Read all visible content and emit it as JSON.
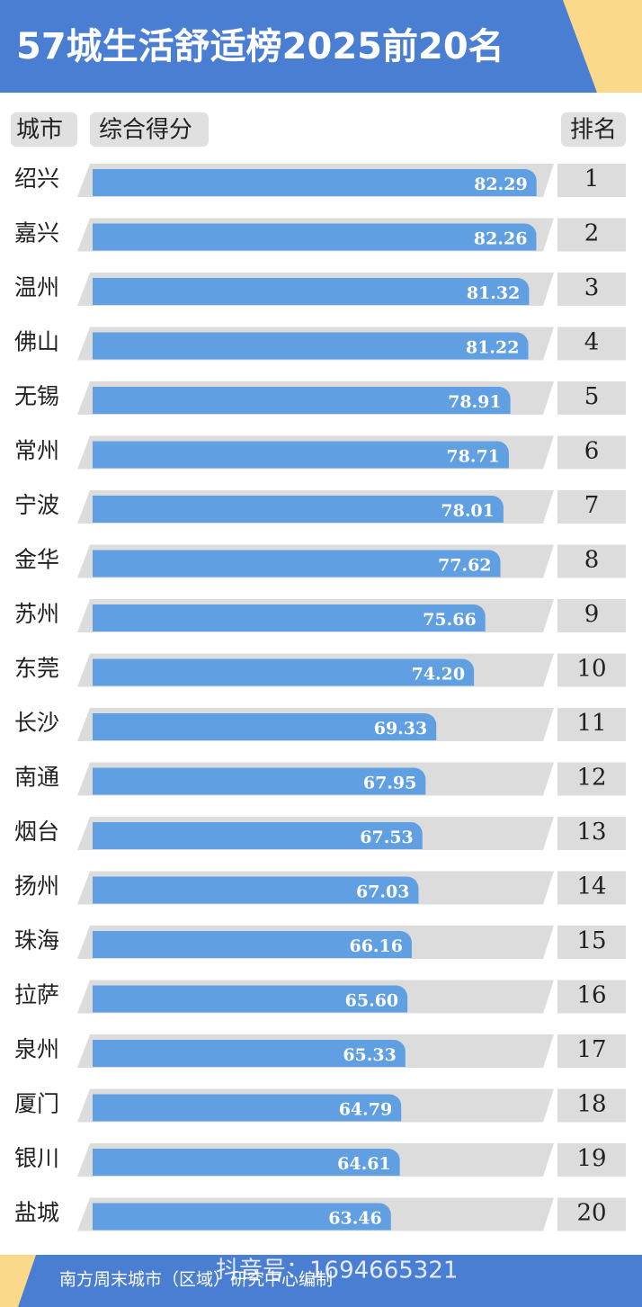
{
  "chart_data": {
    "type": "bar",
    "orientation": "horizontal",
    "title": "57城生活舒适榜2025前20名",
    "headers": {
      "city": "城市",
      "score": "综合得分",
      "rank": "排名"
    },
    "categories": [
      "绍兴",
      "嘉兴",
      "温州",
      "佛山",
      "无锡",
      "常州",
      "宁波",
      "金华",
      "苏州",
      "东莞",
      "长沙",
      "南通",
      "烟台",
      "扬州",
      "珠海",
      "拉萨",
      "泉州",
      "厦门",
      "银川",
      "盐城"
    ],
    "values": [
      82.29,
      82.26,
      81.32,
      81.22,
      78.91,
      78.71,
      78.01,
      77.62,
      75.66,
      74.2,
      69.33,
      67.95,
      67.53,
      67.03,
      66.16,
      65.6,
      65.33,
      64.79,
      64.61,
      63.46
    ],
    "value_labels": [
      "82.29",
      "82.26",
      "81.32",
      "81.22",
      "78.91",
      "78.71",
      "78.01",
      "77.62",
      "75.66",
      "74.20",
      "69.33",
      "67.95",
      "67.53",
      "67.03",
      "66.16",
      "65.60",
      "65.33",
      "64.79",
      "64.61",
      "63.46"
    ],
    "ranks": [
      1,
      2,
      3,
      4,
      5,
      6,
      7,
      8,
      9,
      10,
      11,
      12,
      13,
      14,
      15,
      16,
      17,
      18,
      19,
      20
    ],
    "color": "#5f9fe2",
    "footer": "南方周末城市（区域）研究中心编制",
    "watermark": "抖音号：1694665321"
  }
}
